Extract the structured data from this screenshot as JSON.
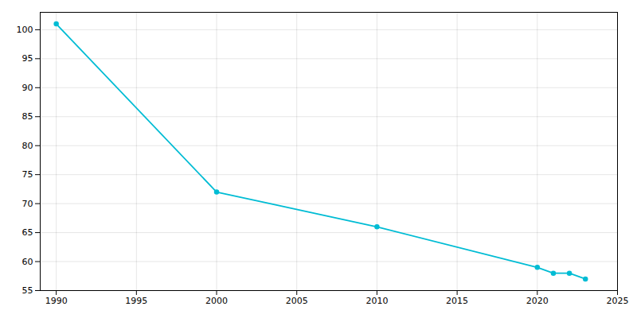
{
  "chart_data": {
    "type": "line",
    "x": [
      1990,
      2000,
      2010,
      2020,
      2021,
      2022,
      2023
    ],
    "values": [
      101,
      72,
      66,
      59,
      58,
      58,
      57
    ],
    "color": "#00bcd4",
    "marker": "circle",
    "xlim": [
      1989,
      2025
    ],
    "ylim": [
      55,
      103
    ],
    "xticks": [
      1990,
      1995,
      2000,
      2005,
      2010,
      2015,
      2020,
      2025
    ],
    "yticks": [
      55,
      60,
      65,
      70,
      75,
      80,
      85,
      90,
      95,
      100
    ],
    "grid": true
  }
}
